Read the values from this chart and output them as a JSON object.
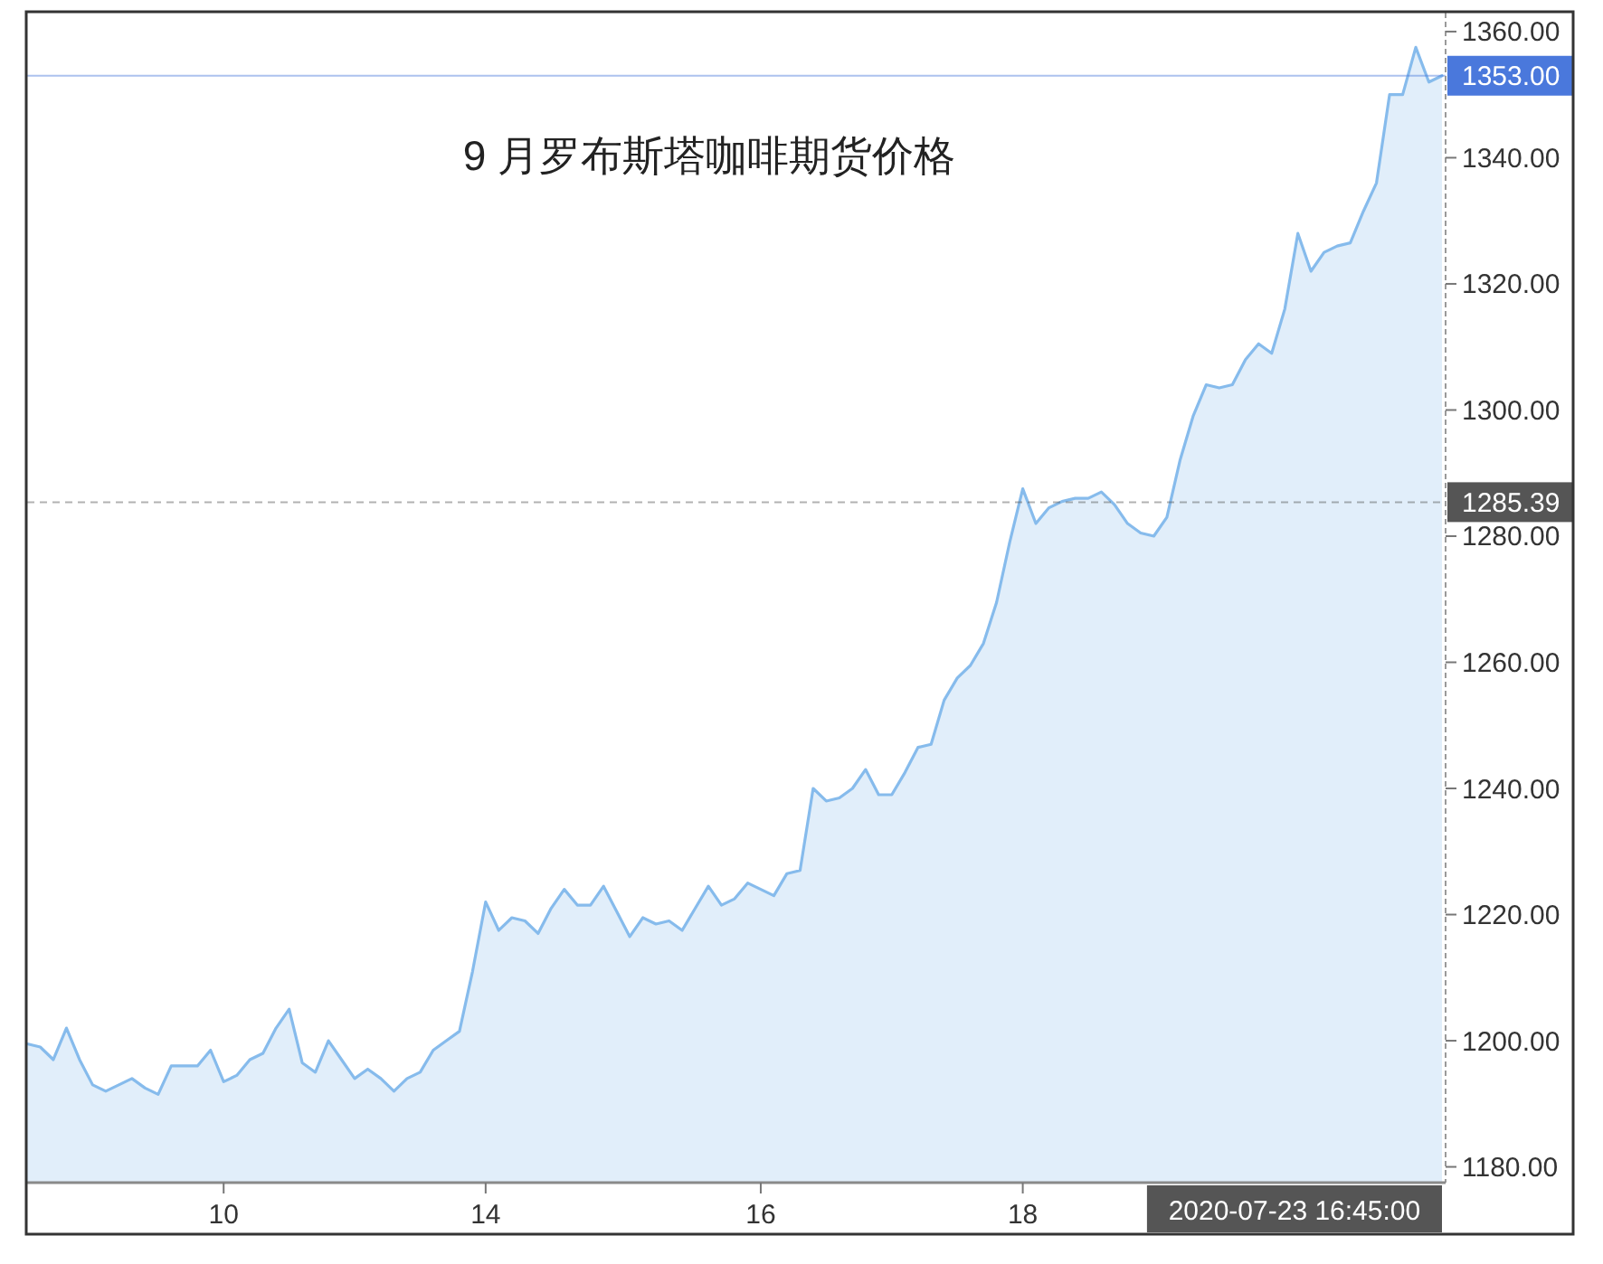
{
  "chart_data": {
    "type": "area",
    "title": "9 月罗布斯塔咖啡期货价格",
    "categories": [
      null,
      null,
      null,
      null,
      null,
      null,
      null,
      null,
      null,
      null,
      null,
      null,
      null,
      null,
      null,
      "10",
      null,
      null,
      null,
      null,
      null,
      null,
      null,
      null,
      null,
      null,
      null,
      null,
      null,
      null,
      null,
      null,
      null,
      null,
      null,
      "14",
      null,
      null,
      null,
      null,
      null,
      null,
      null,
      null,
      null,
      null,
      null,
      null,
      null,
      null,
      null,
      null,
      null,
      null,
      null,
      null,
      "16",
      null,
      null,
      null,
      null,
      null,
      null,
      null,
      null,
      null,
      null,
      null,
      null,
      null,
      null,
      null,
      null,
      null,
      null,
      null,
      "18",
      null,
      null,
      null,
      null,
      null,
      null,
      null,
      null,
      null,
      null,
      null,
      null,
      null,
      null,
      null,
      null,
      null,
      null,
      null,
      null,
      null,
      null,
      null,
      null,
      null,
      null,
      null,
      null,
      null,
      null,
      null,
      null
    ],
    "values": [
      1199.5,
      1199,
      1197,
      1202,
      1197,
      1193,
      1192,
      1193,
      1194,
      1192.5,
      1191.5,
      1196,
      1196,
      1196,
      1198.5,
      1193.5,
      1194.5,
      1197,
      1198,
      1202,
      1205,
      1196.5,
      1195,
      1200,
      1197,
      1194,
      1195.5,
      1194,
      1192,
      1194,
      1195,
      1198.5,
      1200,
      1201.5,
      1211,
      1222,
      1217.5,
      1219.5,
      1219,
      1217,
      1221,
      1224,
      1221.5,
      1221.5,
      1224.5,
      1220.5,
      1216.5,
      1219.5,
      1218.5,
      1219,
      1217.5,
      1221,
      1224.5,
      1221.5,
      1222.5,
      1225,
      1224,
      1223,
      1226.5,
      1227,
      1240,
      1238,
      1238.5,
      1240,
      1243,
      1239,
      1239,
      1242.5,
      1246.5,
      1247,
      1254,
      1257.5,
      1259.5,
      1263,
      1269.5,
      1279,
      1287.5,
      1282,
      1284.5,
      1285.5,
      1286,
      1286,
      1287,
      1285,
      1282,
      1280.5,
      1280,
      1283,
      1292,
      1299,
      1304,
      1303.5,
      1304,
      1308,
      1310.5,
      1309,
      1316,
      1328,
      1322,
      1325,
      1326,
      1326.5,
      1331.5,
      1336,
      1350,
      1350,
      1357.5,
      1352,
      1353
    ],
    "color": "#86bbec",
    "ylim": [
      1177.5,
      1363
    ],
    "yticks": [
      {
        "value": 1180,
        "label": "1180.00"
      },
      {
        "value": 1200,
        "label": "1200.00"
      },
      {
        "value": 1220,
        "label": "1220.00"
      },
      {
        "value": 1240,
        "label": "1240.00"
      },
      {
        "value": 1260,
        "label": "1260.00"
      },
      {
        "value": 1280,
        "label": "1280.00"
      },
      {
        "value": 1300,
        "label": "1300.00"
      },
      {
        "value": 1320,
        "label": "1320.00"
      },
      {
        "value": 1340,
        "label": "1340.00"
      },
      {
        "value": 1360,
        "label": "1360.00"
      }
    ],
    "ref_lines": [
      {
        "axis": "y",
        "value": 1353,
        "label": "1353.00",
        "color": "#4a78dc"
      },
      {
        "axis": "y",
        "value": 1285.39,
        "label": "1285.39",
        "color": "#555555",
        "line_style": "dashed"
      }
    ],
    "annotations": [
      "2020-07-23 16:45:00"
    ]
  }
}
